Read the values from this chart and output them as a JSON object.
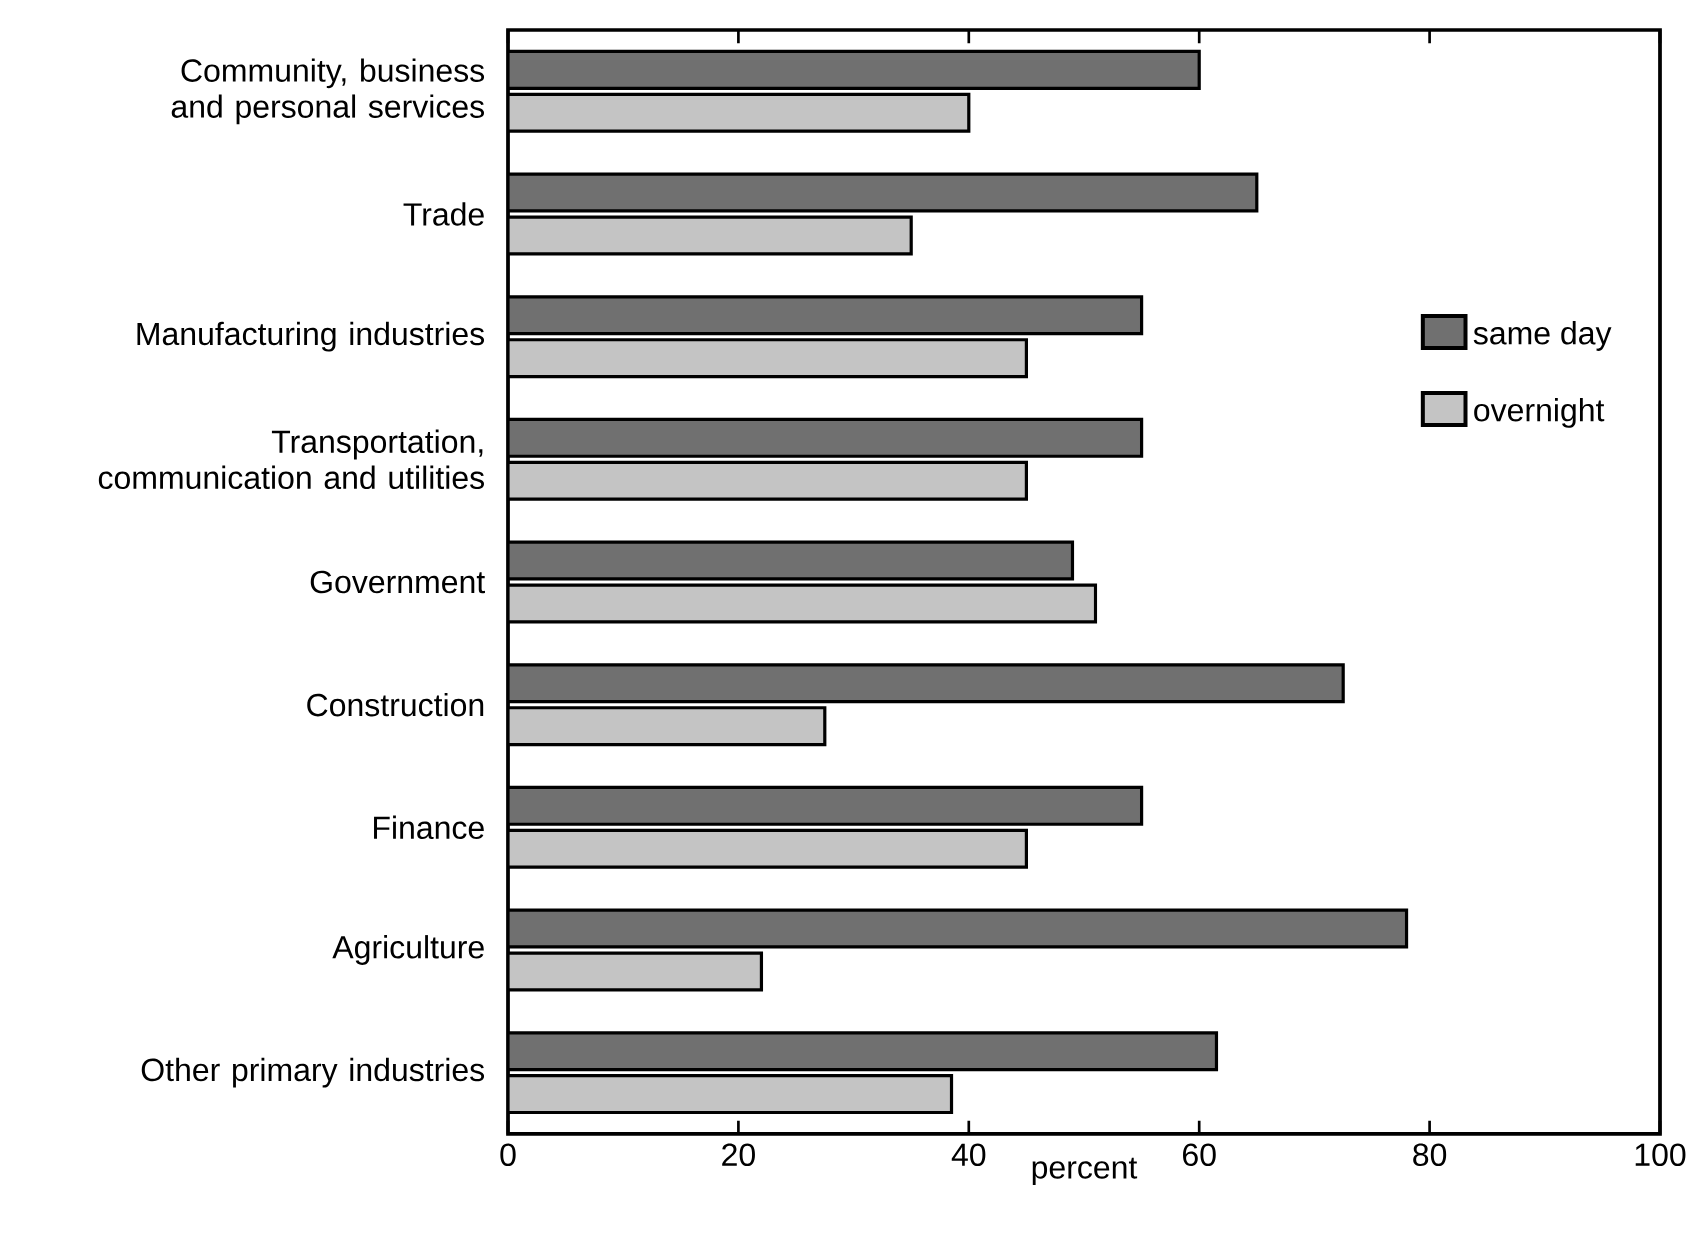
{
  "chart_data": {
    "type": "bar",
    "orientation": "horizontal",
    "xlabel": "percent",
    "categories": [
      "Community, business and personal services",
      "Trade",
      "Manufacturing industries",
      "Transportation, communication and utilities",
      "Government",
      "Construction",
      "Finance",
      "Agriculture",
      "Other primary industries"
    ],
    "series": [
      {
        "name": "same day",
        "color": "#707070",
        "values": [
          60,
          65,
          55,
          55,
          49,
          72.5,
          55,
          78,
          61.5
        ]
      },
      {
        "name": "overnight",
        "color": "#c4c4c4",
        "values": [
          40,
          35,
          45,
          45,
          51,
          27.5,
          45,
          22,
          38.5
        ]
      }
    ],
    "xlim": [
      0,
      100
    ],
    "xticks": [
      0,
      20,
      40,
      60,
      80,
      100
    ],
    "legend": "right",
    "grid": false
  }
}
